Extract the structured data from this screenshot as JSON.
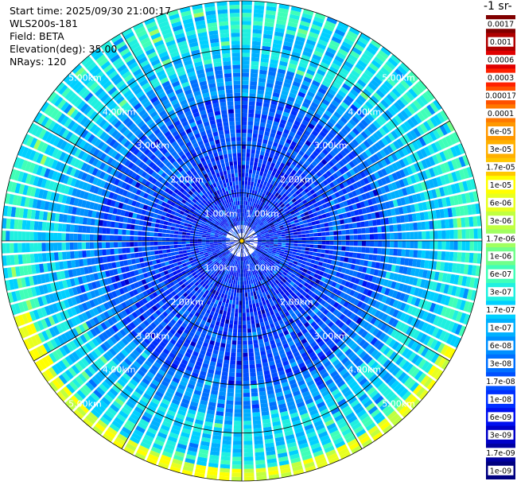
{
  "info": {
    "start_time": "Start time: 2025/09/30 21:00:17",
    "instrument": "WLS200s-181",
    "field": "Field: BETA",
    "elevation": "Elevation(deg): 35.00",
    "nrays": "NRays: 120"
  },
  "colorbar": {
    "title": "-1 sr-",
    "ticks": [
      "0.0017",
      "0.001",
      "0.0006",
      "0.0003",
      "0.00017",
      "0.0001",
      "6e-05",
      "3e-05",
      "1.7e-05",
      "1e-05",
      "6e-06",
      "3e-06",
      "1.7e-06",
      "1e-06",
      "6e-07",
      "3e-07",
      "1.7e-07",
      "1e-07",
      "6e-08",
      "3e-08",
      "1.7e-08",
      "1e-08",
      "6e-09",
      "3e-09",
      "1.7e-09",
      "1e-09"
    ],
    "colors": [
      "#800000",
      "#b00000",
      "#e00000",
      "#ff2000",
      "#ff5000",
      "#ff7800",
      "#ff9800",
      "#ffb000",
      "#ffc800",
      "#ffff00",
      "#e8ff20",
      "#c0ff40",
      "#a0ff60",
      "#70ff8a",
      "#40ffb8",
      "#20f0e0",
      "#00d0ff",
      "#00b0ff",
      "#0090ff",
      "#0070ff",
      "#0050ff",
      "#0030ff",
      "#0010f0",
      "#0000c8",
      "#0000a0",
      "#000080"
    ]
  },
  "chart_data": {
    "type": "heatmap",
    "projection": "polar (PPI scan)",
    "field": "BETA",
    "elevation_deg": 35.0,
    "nrays": 120,
    "range_rings_km": [
      "1.00km",
      "2.00km",
      "3.00km",
      "4.00km",
      "5.00km"
    ],
    "max_range_km": 5.0,
    "value_scale": "log",
    "value_range": [
      1e-09,
      0.0017
    ],
    "pattern_by_range": [
      {
        "range_km": [
          0.0,
          1.8
        ],
        "typical_value": "3e-08",
        "note": "blue, sparse near centre"
      },
      {
        "range_km": [
          1.8,
          3.0
        ],
        "typical_value": "3e-08",
        "note": "blue"
      },
      {
        "range_km": [
          3.0,
          4.6
        ],
        "typical_value": "1e-07",
        "note": "light blue / cyan"
      },
      {
        "range_km": [
          4.6,
          5.0
        ],
        "typical_value": "6e-07",
        "note": "cyan / green"
      },
      {
        "range_km": [
          4.8,
          5.0
        ],
        "typical_value": "3e-05",
        "note": "yellow band in south sector"
      }
    ]
  }
}
